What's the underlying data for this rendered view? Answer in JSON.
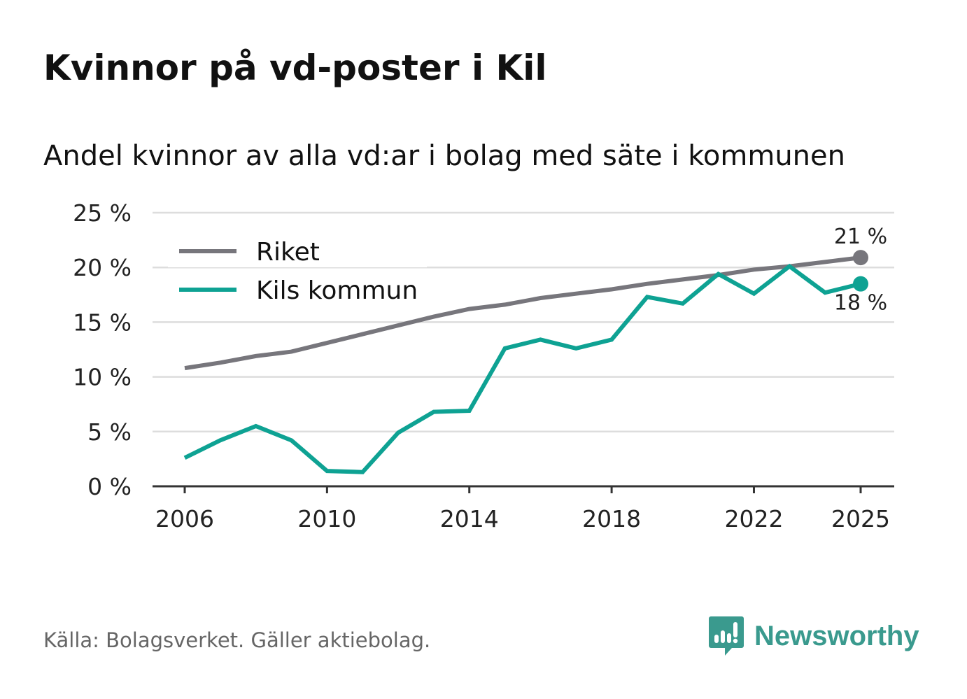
{
  "title": "Kvinnor på vd-poster i Kil",
  "subtitle": "Andel kvinnor av alla vd:ar i bolag med säte i kommunen",
  "source": "Källa: Bolagsverket. Gäller aktiebolag.",
  "brand": {
    "name": "Newsworthy",
    "icon": "newsworthy-logo-icon"
  },
  "colors": {
    "riket": "#77767c",
    "kil": "#0ea293",
    "grid": "#dddddd",
    "axis": "#333333"
  },
  "chart_data": {
    "type": "line",
    "title": "Kvinnor på vd-poster i Kil",
    "xlabel": "",
    "ylabel": "",
    "ylim": [
      0,
      25
    ],
    "xlim": [
      2006,
      2025
    ],
    "grid": true,
    "legend": "top-left",
    "x": [
      2006,
      2007,
      2008,
      2009,
      2010,
      2011,
      2012,
      2013,
      2014,
      2015,
      2016,
      2017,
      2018,
      2019,
      2020,
      2021,
      2022,
      2023,
      2024,
      2025
    ],
    "x_ticks": [
      2006,
      2010,
      2014,
      2018,
      2022,
      2025
    ],
    "x_tick_labels": [
      "2006",
      "2010",
      "2014",
      "2018",
      "2022",
      "2025"
    ],
    "y_ticks": [
      0,
      5,
      10,
      15,
      20,
      25
    ],
    "y_tick_labels": [
      "0 %",
      "5 %",
      "10 %",
      "15 %",
      "20 %",
      "25 %"
    ],
    "series": [
      {
        "name": "Riket",
        "color": "#77767c",
        "values": [
          10.8,
          11.3,
          11.9,
          12.3,
          13.1,
          13.9,
          14.7,
          15.5,
          16.2,
          16.6,
          17.2,
          17.6,
          18.0,
          18.5,
          18.9,
          19.3,
          19.8,
          20.1,
          20.5,
          20.9
        ],
        "end_label": "21 %"
      },
      {
        "name": "Kils kommun",
        "color": "#0ea293",
        "values": [
          2.6,
          4.2,
          5.5,
          4.2,
          1.4,
          1.3,
          4.9,
          6.8,
          6.9,
          12.6,
          13.4,
          12.6,
          13.4,
          17.3,
          16.7,
          19.4,
          17.6,
          20.1,
          17.7,
          18.5
        ],
        "end_label": "18 %"
      }
    ]
  }
}
